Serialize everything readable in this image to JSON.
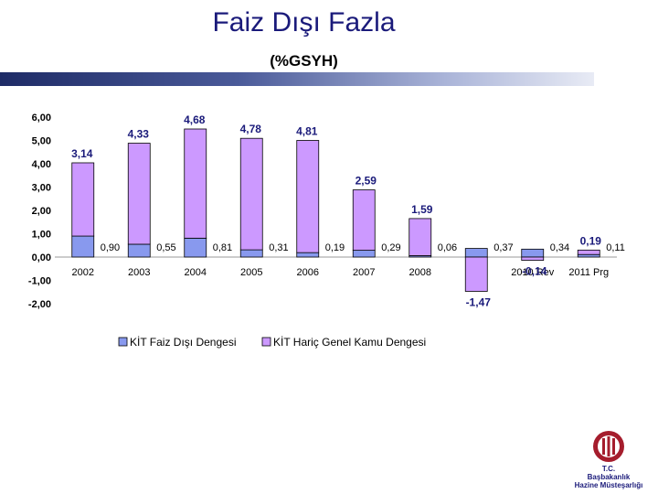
{
  "title": "Faiz Dışı Fazla",
  "subtitle": "(%GSYH)",
  "org": {
    "line1": "T.C.",
    "line2": "Başbakanlık",
    "line3": "Hazine Müsteşarlığı"
  },
  "colors": {
    "kit": "#8899ee",
    "kamu": "#cc99ff",
    "outline": "#000000"
  },
  "chart_data": {
    "type": "bar",
    "stacked": true,
    "categories": [
      "2002",
      "2003",
      "2004",
      "2005",
      "2006",
      "2007",
      "2008",
      "2009",
      "2010 Rev",
      "2011 Prg"
    ],
    "yticks": [
      "6,00",
      "5,00",
      "4,00",
      "3,00",
      "2,00",
      "1,00",
      "0,00",
      "-1,00",
      "-2,00"
    ],
    "ylim": [
      -2,
      6
    ],
    "series": [
      {
        "name": "KİT Faiz Dışı Dengesi",
        "color": "#8899ee",
        "values": [
          0.9,
          0.55,
          0.81,
          0.31,
          0.19,
          0.29,
          0.06,
          0.37,
          0.34,
          0.11
        ],
        "labels": [
          "0,90",
          "0,55",
          "0,81",
          "0,31",
          "0,19",
          "0,29",
          "0,06",
          "0,37",
          "0,34",
          "0,11"
        ]
      },
      {
        "name": "KİT Hariç Genel Kamu Dengesi",
        "color": "#cc99ff",
        "values": [
          3.14,
          4.33,
          4.68,
          4.78,
          4.81,
          2.59,
          1.59,
          -1.47,
          -0.14,
          0.19
        ],
        "labels": [
          "3,14",
          "4,33",
          "4,68",
          "4,78",
          "4,81",
          "2,59",
          "1,59",
          "-1,47",
          "-0,14",
          "0,19"
        ]
      }
    ],
    "legend": "bottom"
  }
}
